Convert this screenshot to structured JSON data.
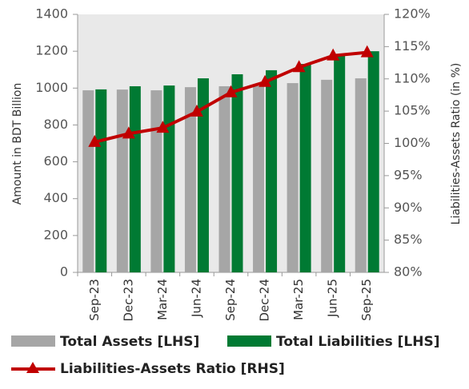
{
  "chart_data": {
    "type": "bar",
    "categories": [
      "Sep-23",
      "Dec-23",
      "Mar-24",
      "Jun-24",
      "Sep-24",
      "Dec-24",
      "Mar-25",
      "Jun-25",
      "Sep-25"
    ],
    "series": [
      {
        "name": "Total Assets [LHS]",
        "color": "#a6a6a6",
        "values": [
          988,
          992,
          988,
          1005,
          1010,
          1012,
          1027,
          1045,
          1053
        ]
      },
      {
        "name": "Total Liabilities [LHS]",
        "color": "#007a33",
        "values": [
          993,
          1010,
          1014,
          1053,
          1075,
          1097,
          1131,
          1175,
          1200
        ]
      },
      {
        "name": "Liabilities-Assets Ratio [RHS]",
        "color": "#c00000",
        "type": "line",
        "axis": "y2",
        "values": [
          100.2,
          101.5,
          102.4,
          104.9,
          107.9,
          109.5,
          111.8,
          113.6,
          114.1
        ]
      }
    ],
    "ylabel": "Amount in BDT Billion",
    "y2label": "Liabilities-Assets Ratio (in %)",
    "ylim": [
      0,
      1400
    ],
    "yticks": [
      0,
      200,
      400,
      600,
      800,
      1000,
      1200,
      1400
    ],
    "y2lim": [
      80,
      120
    ],
    "y2ticks": [
      {
        "value": 80,
        "label": "80%"
      },
      {
        "value": 85,
        "label": "85%"
      },
      {
        "value": 90,
        "label": "90%"
      },
      {
        "value": 95,
        "label": "95%"
      },
      {
        "value": 100,
        "label": "100%"
      },
      {
        "value": 105,
        "label": "105%"
      },
      {
        "value": 110,
        "label": "110%"
      },
      {
        "value": 115,
        "label": "115%"
      },
      {
        "value": 120,
        "label": "120%"
      }
    ],
    "legend": "bottom"
  }
}
